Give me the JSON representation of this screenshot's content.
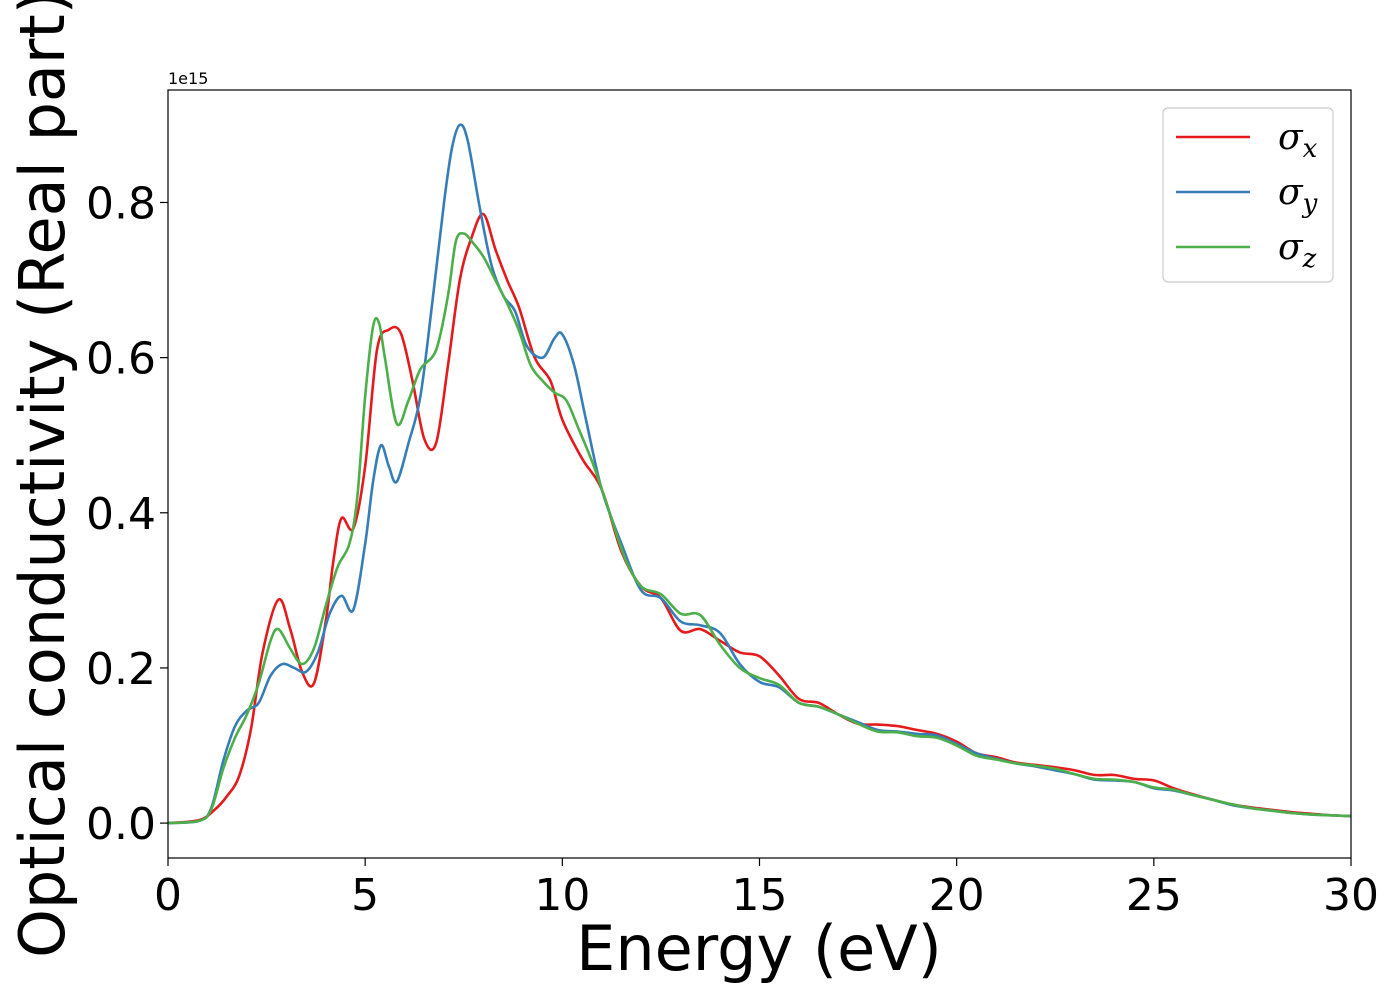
{
  "chart_data": {
    "type": "line",
    "title": "",
    "xlabel": "Energy (eV)",
    "ylabel": "Optical conductivity (Real part)",
    "y_offset_label": "1e15",
    "xlim": [
      0,
      30
    ],
    "ylim": [
      -0.045,
      0.945
    ],
    "xticks": [
      0,
      5,
      10,
      15,
      20,
      25,
      30
    ],
    "xtick_labels": [
      "0",
      "5",
      "10",
      "15",
      "20",
      "25",
      "30"
    ],
    "yticks": [
      0.0,
      0.2,
      0.4,
      0.6,
      0.8
    ],
    "ytick_labels": [
      "0.0",
      "0.2",
      "0.4",
      "0.6",
      "0.8"
    ],
    "grid": false,
    "legend_position": "top-right",
    "series": [
      {
        "name": "σx",
        "name_base": "σ",
        "name_sub": "x",
        "color": "#e41a1c",
        "points": [
          [
            0,
            0
          ],
          [
            0.8,
            0.004
          ],
          [
            1.2,
            0.018
          ],
          [
            1.5,
            0.035
          ],
          [
            1.8,
            0.06
          ],
          [
            2.1,
            0.12
          ],
          [
            2.4,
            0.22
          ],
          [
            2.8,
            0.288
          ],
          [
            3.1,
            0.25
          ],
          [
            3.4,
            0.195
          ],
          [
            3.7,
            0.18
          ],
          [
            4.0,
            0.26
          ],
          [
            4.2,
            0.34
          ],
          [
            4.4,
            0.393
          ],
          [
            4.7,
            0.38
          ],
          [
            5.0,
            0.46
          ],
          [
            5.3,
            0.61
          ],
          [
            5.6,
            0.636
          ],
          [
            5.9,
            0.632
          ],
          [
            6.2,
            0.57
          ],
          [
            6.5,
            0.495
          ],
          [
            6.8,
            0.49
          ],
          [
            7.1,
            0.59
          ],
          [
            7.4,
            0.7
          ],
          [
            7.7,
            0.755
          ],
          [
            8.0,
            0.785
          ],
          [
            8.3,
            0.74
          ],
          [
            8.6,
            0.7
          ],
          [
            8.9,
            0.665
          ],
          [
            9.3,
            0.6
          ],
          [
            9.7,
            0.57
          ],
          [
            10.0,
            0.52
          ],
          [
            10.5,
            0.47
          ],
          [
            11.0,
            0.43
          ],
          [
            11.5,
            0.35
          ],
          [
            12.0,
            0.305
          ],
          [
            12.5,
            0.29
          ],
          [
            13.0,
            0.248
          ],
          [
            13.5,
            0.25
          ],
          [
            14.0,
            0.235
          ],
          [
            14.5,
            0.22
          ],
          [
            15.0,
            0.215
          ],
          [
            15.5,
            0.19
          ],
          [
            16.0,
            0.16
          ],
          [
            16.5,
            0.155
          ],
          [
            17.0,
            0.14
          ],
          [
            17.5,
            0.128
          ],
          [
            18.0,
            0.127
          ],
          [
            18.5,
            0.125
          ],
          [
            19.0,
            0.12
          ],
          [
            19.5,
            0.115
          ],
          [
            20.0,
            0.105
          ],
          [
            20.5,
            0.09
          ],
          [
            21.0,
            0.085
          ],
          [
            21.5,
            0.078
          ],
          [
            22.0,
            0.075
          ],
          [
            22.5,
            0.072
          ],
          [
            23.0,
            0.068
          ],
          [
            23.5,
            0.062
          ],
          [
            24.0,
            0.062
          ],
          [
            24.5,
            0.057
          ],
          [
            25.0,
            0.055
          ],
          [
            25.5,
            0.045
          ],
          [
            26.0,
            0.037
          ],
          [
            26.5,
            0.03
          ],
          [
            27.0,
            0.024
          ],
          [
            27.5,
            0.02
          ],
          [
            28.0,
            0.017
          ],
          [
            28.5,
            0.014
          ],
          [
            29.0,
            0.012
          ],
          [
            29.5,
            0.01
          ],
          [
            30.0,
            0.009
          ]
        ]
      },
      {
        "name": "σy",
        "name_base": "σ",
        "name_sub": "y",
        "color": "#377eb8",
        "points": [
          [
            0,
            0
          ],
          [
            0.8,
            0.003
          ],
          [
            1.1,
            0.02
          ],
          [
            1.4,
            0.08
          ],
          [
            1.7,
            0.125
          ],
          [
            2.0,
            0.145
          ],
          [
            2.3,
            0.155
          ],
          [
            2.6,
            0.19
          ],
          [
            2.9,
            0.205
          ],
          [
            3.2,
            0.2
          ],
          [
            3.5,
            0.195
          ],
          [
            3.8,
            0.22
          ],
          [
            4.1,
            0.27
          ],
          [
            4.4,
            0.293
          ],
          [
            4.7,
            0.275
          ],
          [
            5.0,
            0.36
          ],
          [
            5.2,
            0.44
          ],
          [
            5.4,
            0.487
          ],
          [
            5.6,
            0.46
          ],
          [
            5.8,
            0.44
          ],
          [
            6.1,
            0.49
          ],
          [
            6.4,
            0.55
          ],
          [
            6.7,
            0.67
          ],
          [
            7.0,
            0.8
          ],
          [
            7.2,
            0.87
          ],
          [
            7.4,
            0.9
          ],
          [
            7.6,
            0.88
          ],
          [
            7.9,
            0.795
          ],
          [
            8.2,
            0.72
          ],
          [
            8.5,
            0.68
          ],
          [
            8.8,
            0.66
          ],
          [
            9.1,
            0.615
          ],
          [
            9.5,
            0.6
          ],
          [
            9.8,
            0.625
          ],
          [
            10.0,
            0.63
          ],
          [
            10.3,
            0.59
          ],
          [
            10.6,
            0.52
          ],
          [
            11.0,
            0.43
          ],
          [
            11.5,
            0.36
          ],
          [
            12.0,
            0.3
          ],
          [
            12.5,
            0.29
          ],
          [
            13.0,
            0.26
          ],
          [
            13.5,
            0.255
          ],
          [
            14.0,
            0.245
          ],
          [
            14.5,
            0.205
          ],
          [
            15.0,
            0.182
          ],
          [
            15.5,
            0.175
          ],
          [
            16.0,
            0.155
          ],
          [
            16.5,
            0.15
          ],
          [
            17.0,
            0.14
          ],
          [
            17.5,
            0.13
          ],
          [
            18.0,
            0.12
          ],
          [
            18.5,
            0.118
          ],
          [
            19.0,
            0.115
          ],
          [
            19.5,
            0.113
          ],
          [
            20.0,
            0.102
          ],
          [
            20.5,
            0.09
          ],
          [
            21.0,
            0.083
          ],
          [
            21.5,
            0.077
          ],
          [
            22.0,
            0.073
          ],
          [
            22.5,
            0.068
          ],
          [
            23.0,
            0.063
          ],
          [
            23.5,
            0.056
          ],
          [
            24.0,
            0.055
          ],
          [
            24.5,
            0.053
          ],
          [
            25.0,
            0.045
          ],
          [
            25.5,
            0.042
          ],
          [
            26.0,
            0.036
          ],
          [
            26.5,
            0.03
          ],
          [
            27.0,
            0.023
          ],
          [
            27.5,
            0.019
          ],
          [
            28.0,
            0.016
          ],
          [
            28.5,
            0.013
          ],
          [
            29.0,
            0.011
          ],
          [
            29.5,
            0.01
          ],
          [
            30.0,
            0.009
          ]
        ]
      },
      {
        "name": "σz",
        "name_base": "σ",
        "name_sub": "z",
        "color": "#4daf4a",
        "points": [
          [
            0,
            0
          ],
          [
            0.8,
            0.003
          ],
          [
            1.1,
            0.018
          ],
          [
            1.4,
            0.07
          ],
          [
            1.7,
            0.11
          ],
          [
            2.0,
            0.14
          ],
          [
            2.3,
            0.18
          ],
          [
            2.6,
            0.235
          ],
          [
            2.8,
            0.25
          ],
          [
            3.1,
            0.225
          ],
          [
            3.4,
            0.205
          ],
          [
            3.7,
            0.225
          ],
          [
            4.0,
            0.28
          ],
          [
            4.3,
            0.33
          ],
          [
            4.6,
            0.36
          ],
          [
            4.8,
            0.42
          ],
          [
            5.0,
            0.55
          ],
          [
            5.2,
            0.64
          ],
          [
            5.35,
            0.645
          ],
          [
            5.5,
            0.6
          ],
          [
            5.8,
            0.515
          ],
          [
            6.1,
            0.545
          ],
          [
            6.4,
            0.585
          ],
          [
            6.8,
            0.61
          ],
          [
            7.1,
            0.68
          ],
          [
            7.3,
            0.75
          ],
          [
            7.5,
            0.76
          ],
          [
            7.7,
            0.75
          ],
          [
            8.0,
            0.73
          ],
          [
            8.3,
            0.7
          ],
          [
            8.6,
            0.67
          ],
          [
            8.9,
            0.635
          ],
          [
            9.2,
            0.59
          ],
          [
            9.5,
            0.57
          ],
          [
            9.8,
            0.555
          ],
          [
            10.1,
            0.545
          ],
          [
            10.4,
            0.51
          ],
          [
            10.8,
            0.46
          ],
          [
            11.2,
            0.4
          ],
          [
            11.6,
            0.34
          ],
          [
            12.0,
            0.305
          ],
          [
            12.5,
            0.295
          ],
          [
            13.0,
            0.27
          ],
          [
            13.5,
            0.268
          ],
          [
            14.0,
            0.23
          ],
          [
            14.5,
            0.2
          ],
          [
            15.0,
            0.187
          ],
          [
            15.5,
            0.178
          ],
          [
            16.0,
            0.155
          ],
          [
            16.5,
            0.15
          ],
          [
            17.0,
            0.14
          ],
          [
            17.5,
            0.128
          ],
          [
            18.0,
            0.118
          ],
          [
            18.5,
            0.117
          ],
          [
            19.0,
            0.112
          ],
          [
            19.5,
            0.11
          ],
          [
            20.0,
            0.1
          ],
          [
            20.5,
            0.087
          ],
          [
            21.0,
            0.082
          ],
          [
            21.5,
            0.077
          ],
          [
            22.0,
            0.074
          ],
          [
            22.5,
            0.07
          ],
          [
            23.0,
            0.063
          ],
          [
            23.5,
            0.057
          ],
          [
            24.0,
            0.056
          ],
          [
            24.5,
            0.053
          ],
          [
            25.0,
            0.046
          ],
          [
            25.5,
            0.043
          ],
          [
            26.0,
            0.036
          ],
          [
            26.5,
            0.03
          ],
          [
            27.0,
            0.024
          ],
          [
            27.5,
            0.019
          ],
          [
            28.0,
            0.016
          ],
          [
            28.5,
            0.013
          ],
          [
            29.0,
            0.011
          ],
          [
            29.5,
            0.01
          ],
          [
            30.0,
            0.009
          ]
        ]
      }
    ]
  }
}
